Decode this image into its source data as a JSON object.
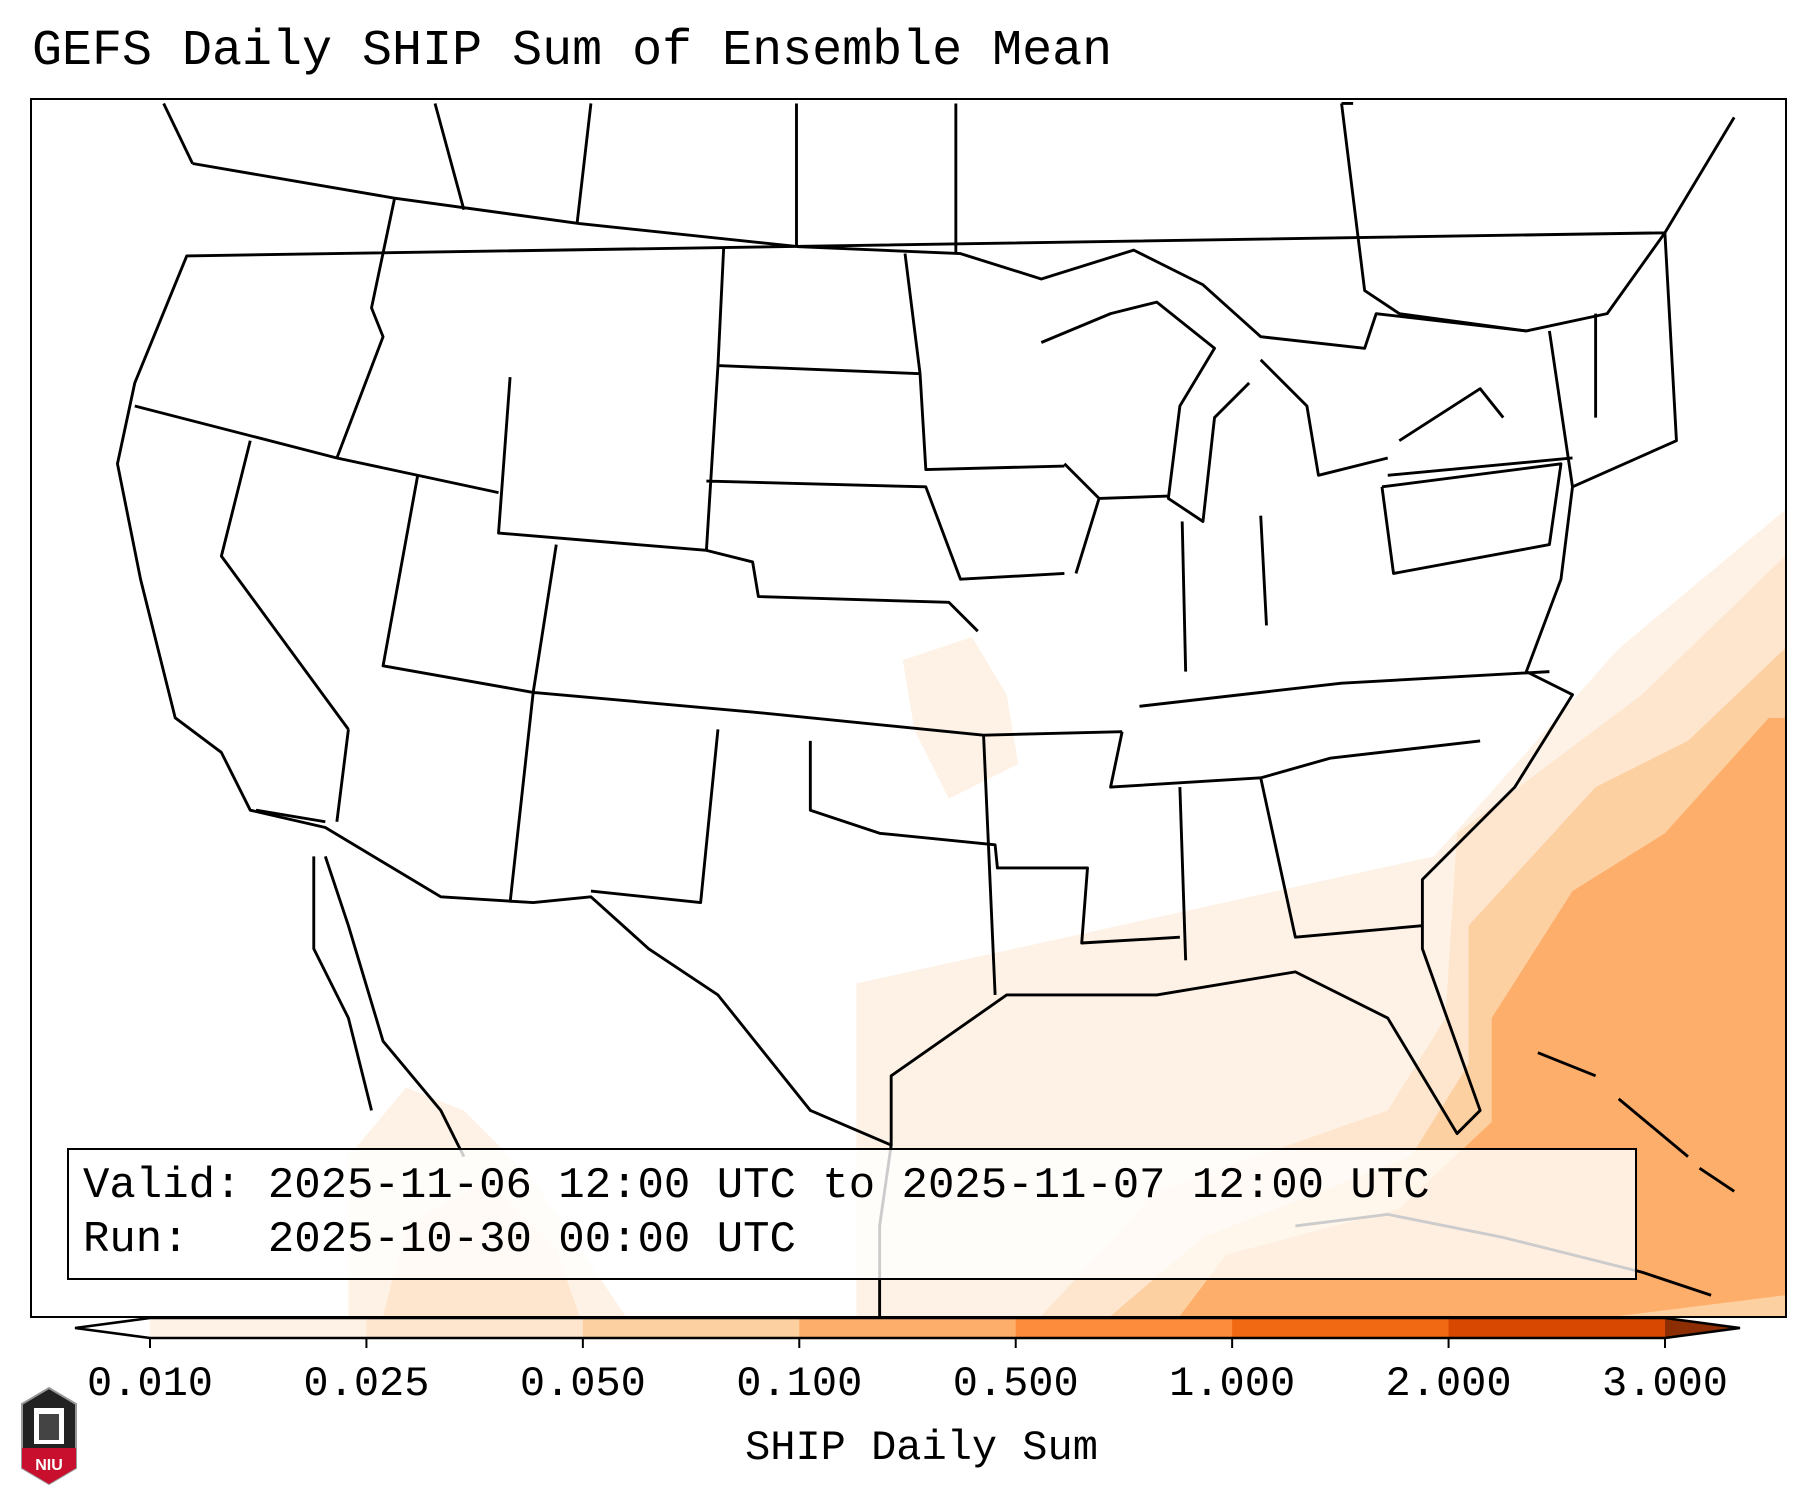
{
  "title": "GEFS Daily SHIP Sum of Ensemble Mean",
  "legend": {
    "valid_label": "Valid:",
    "valid_value": "2025-11-06 12:00 UTC to 2025-11-07 12:00 UTC",
    "run_label": "Run:",
    "run_value": "2025-10-30 00:00 UTC"
  },
  "colorbar": {
    "label": "SHIP Daily Sum",
    "ticks": [
      "0.010",
      "0.025",
      "0.050",
      "0.100",
      "0.500",
      "1.000",
      "2.000",
      "3.000"
    ],
    "colors": [
      "#fef2e6",
      "#fee5cd",
      "#fdd0a2",
      "#fdae6b",
      "#fd8d3c",
      "#f16913",
      "#d94801"
    ],
    "under_color": "#ffffff",
    "over_color": "#8c2d04"
  },
  "logo": {
    "text": "NIU"
  }
}
